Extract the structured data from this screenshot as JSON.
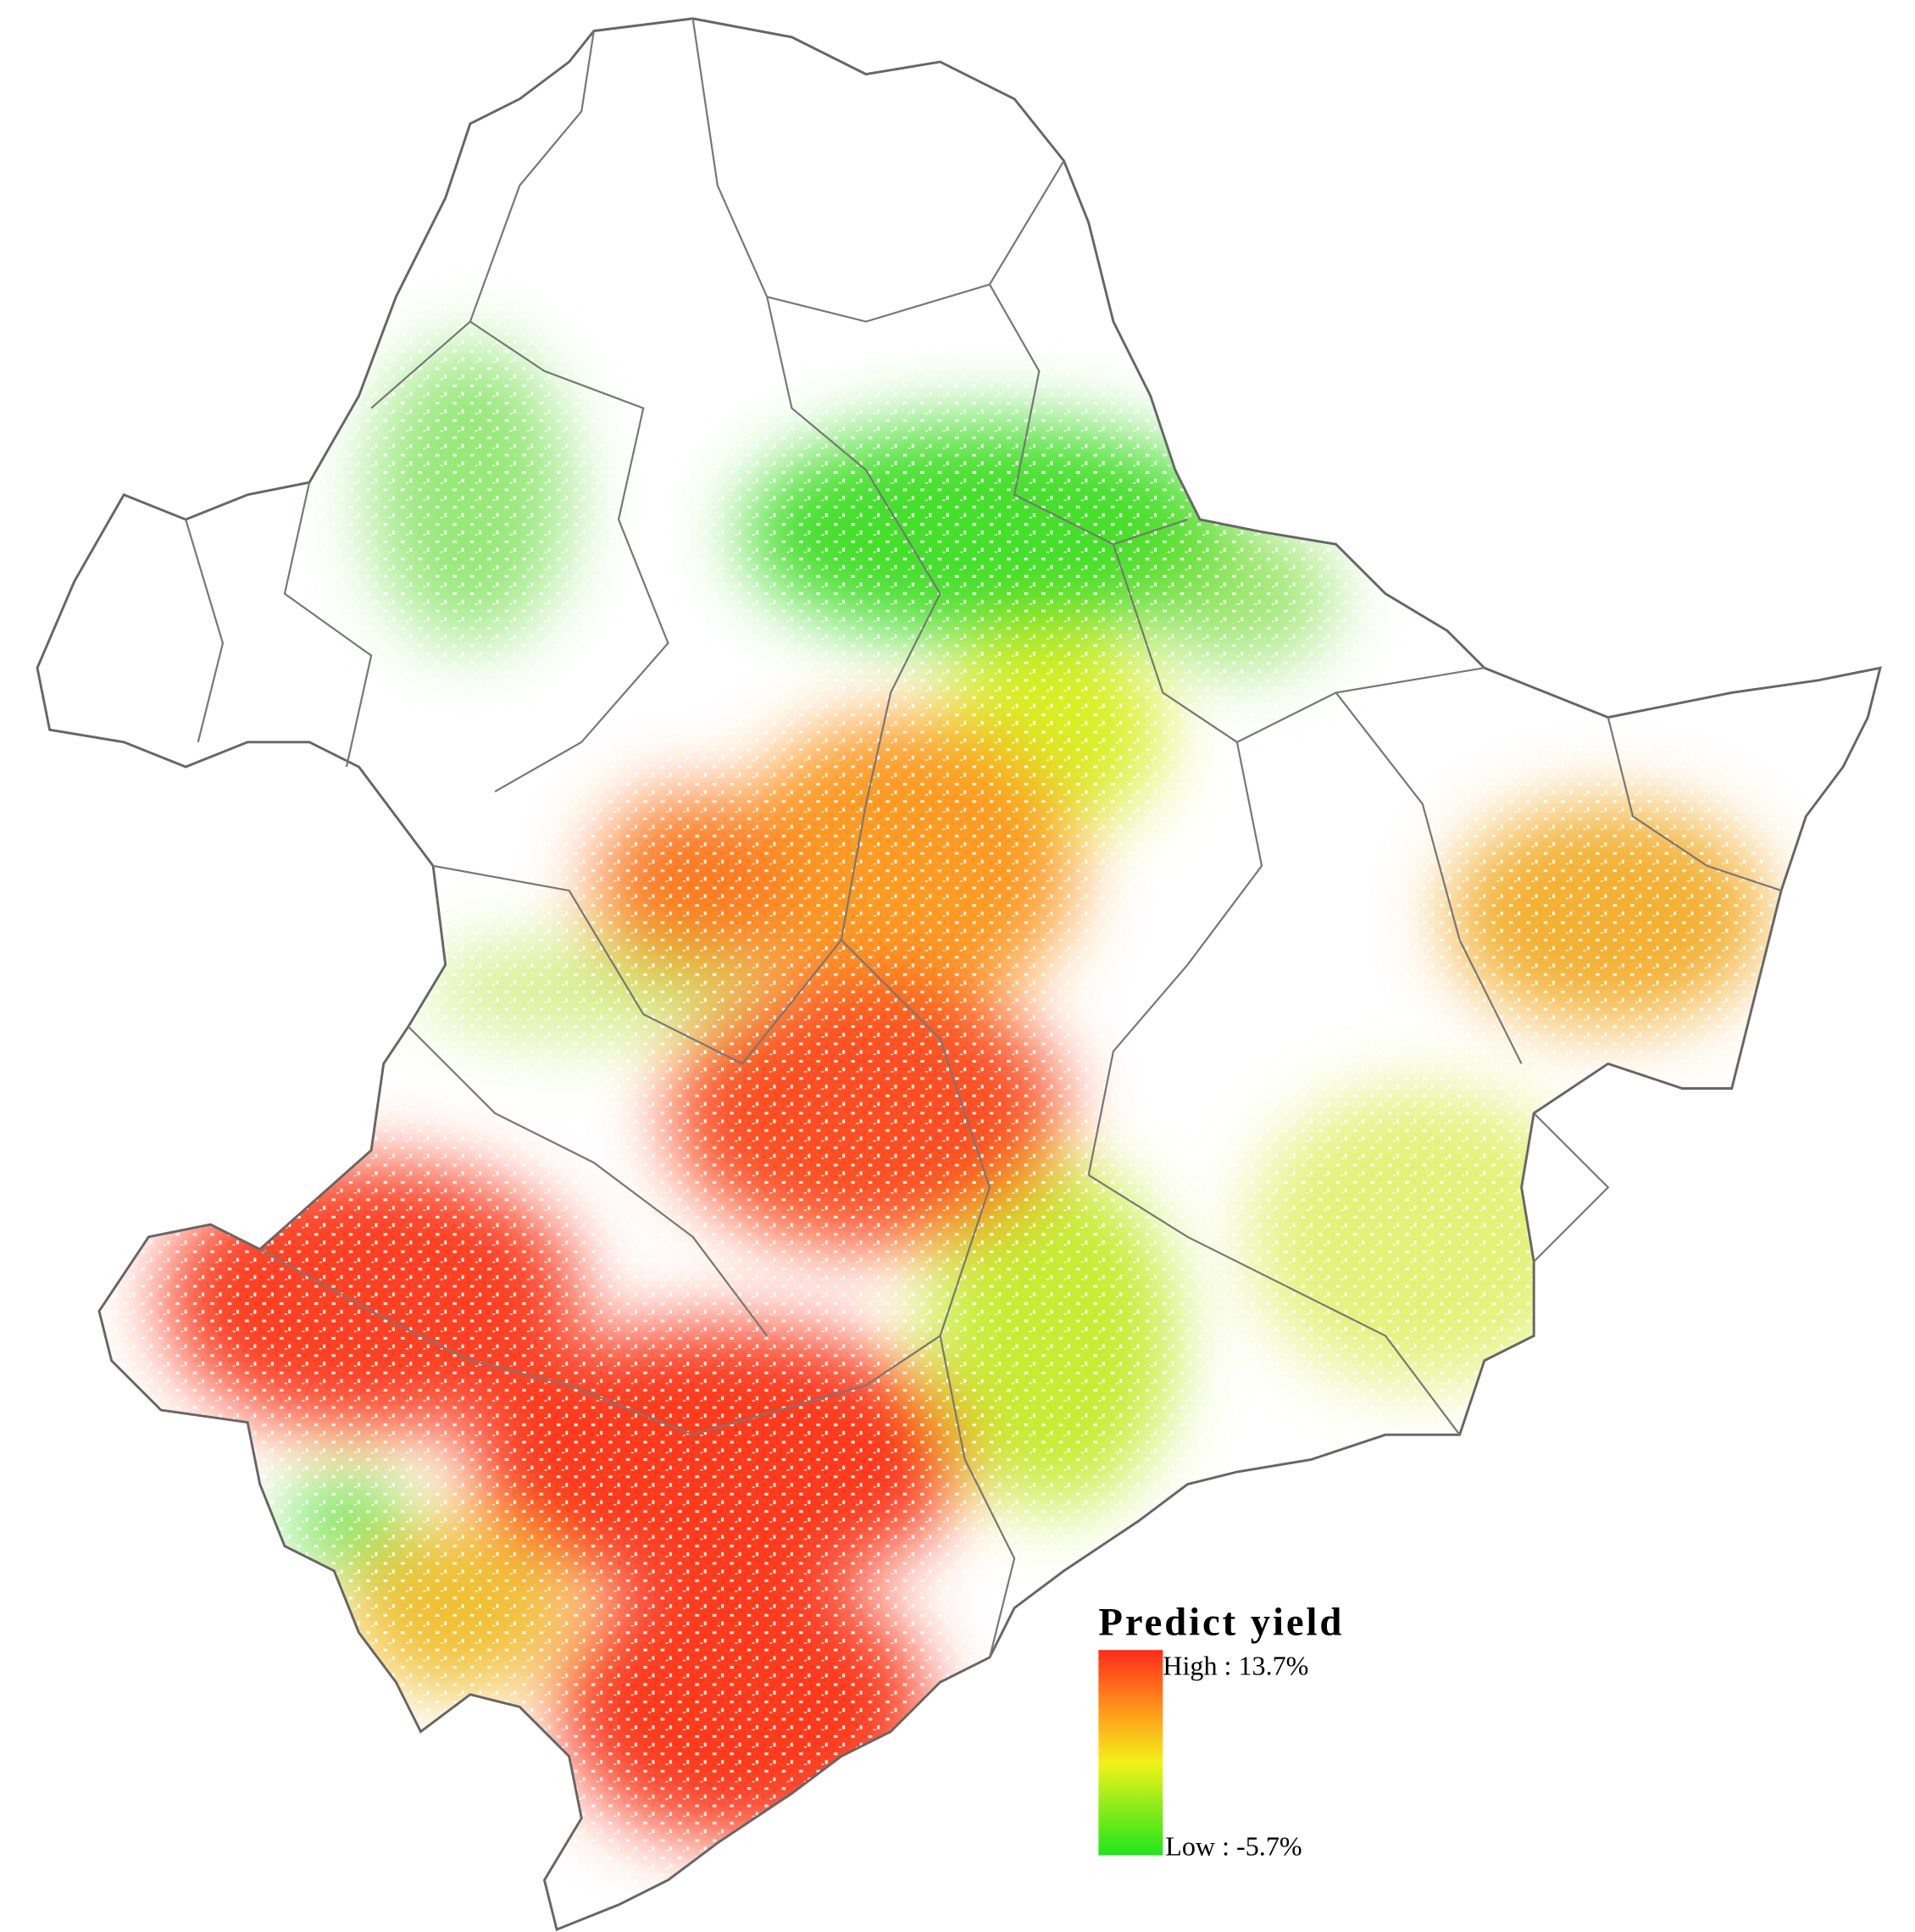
{
  "legend": {
    "title": "Predict yield",
    "high": "High : 13.7%",
    "low": "Low : -5.7%"
  }
}
